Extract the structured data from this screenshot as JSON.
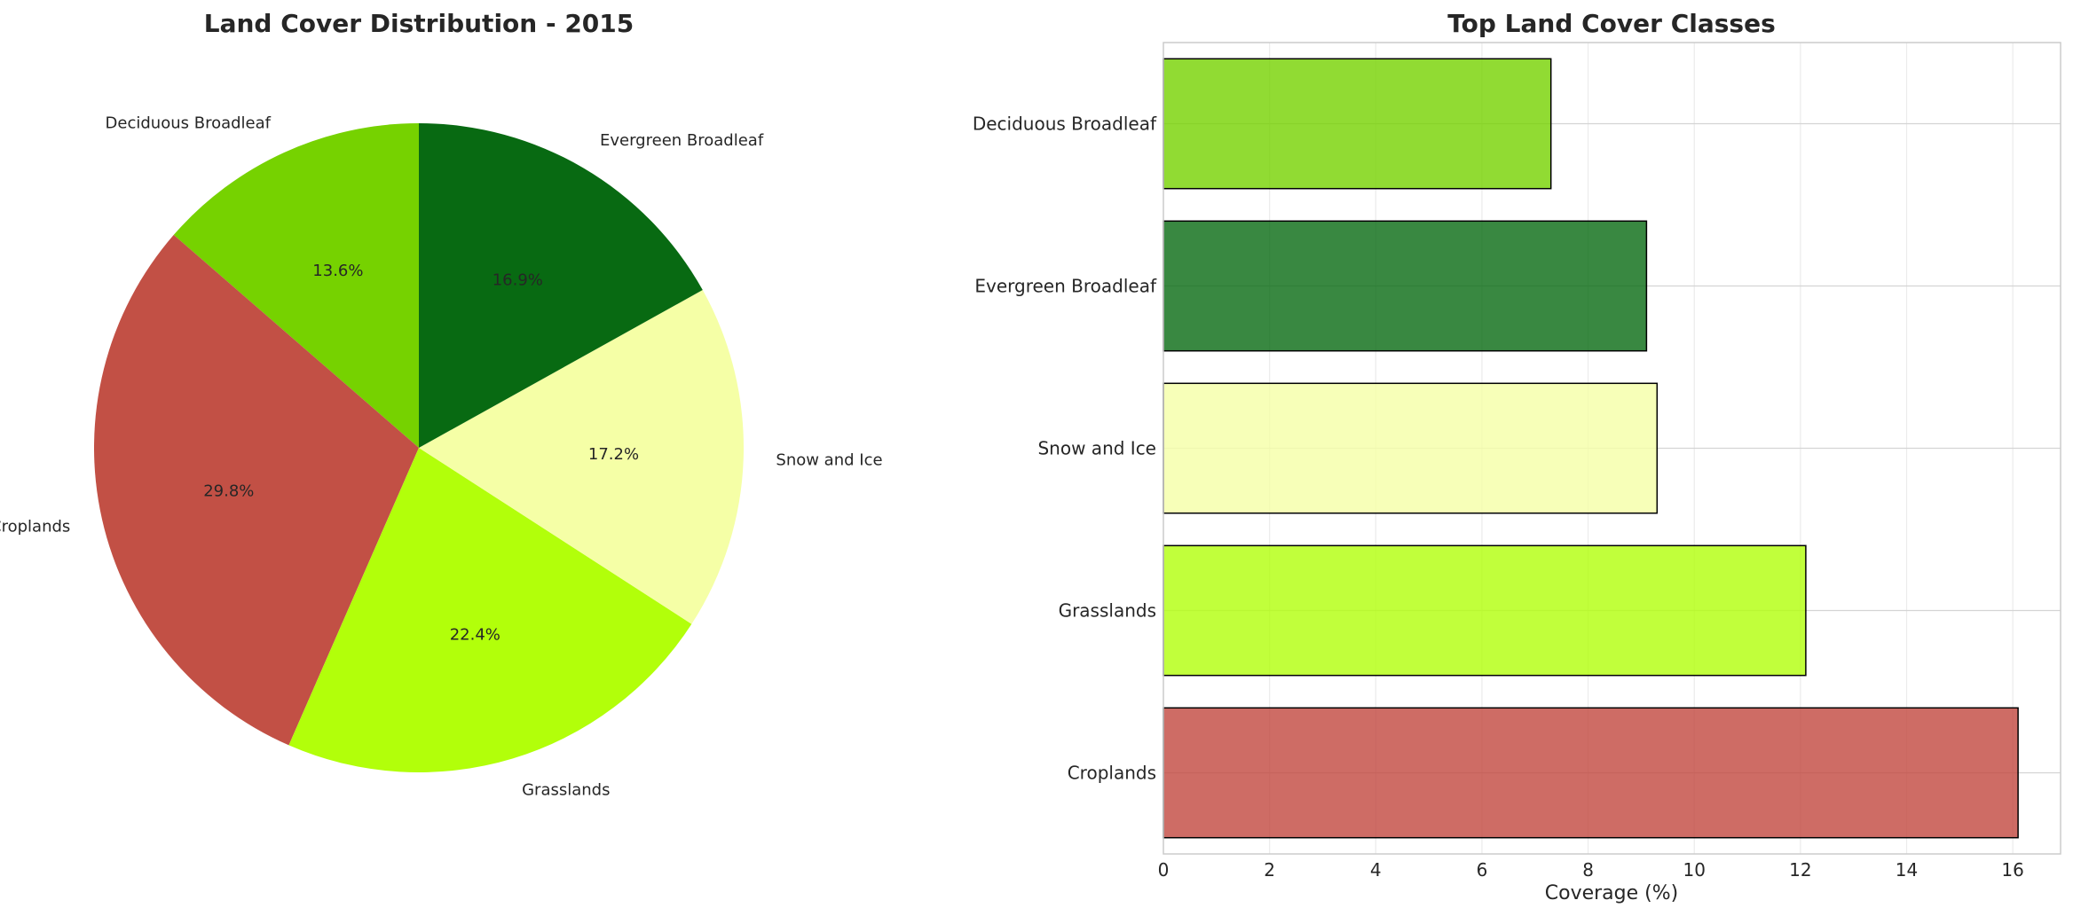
{
  "chart_data": [
    {
      "type": "pie",
      "title": "Land Cover Distribution - 2015",
      "start_angle_deg": 90,
      "direction": "counterclockwise",
      "slices": [
        {
          "label": "Deciduous Broadleaf",
          "value": 13.6,
          "pct_label": "13.6%",
          "color": "#76D200"
        },
        {
          "label": "Croplands",
          "value": 29.8,
          "pct_label": "29.8%",
          "color": "#C25045"
        },
        {
          "label": "Grasslands",
          "value": 22.4,
          "pct_label": "22.4%",
          "color": "#B2FF0A"
        },
        {
          "label": "Snow and Ice",
          "value": 17.2,
          "pct_label": "17.2%",
          "color": "#F5FFA6"
        },
        {
          "label": "Evergreen Broadleaf",
          "value": 16.9,
          "pct_label": "16.9%",
          "color": "#086A12"
        }
      ]
    },
    {
      "type": "bar",
      "orientation": "horizontal",
      "title": "Top Land Cover Classes",
      "xlabel": "Coverage (%)",
      "ylabel": "",
      "xlim": [
        0,
        16.9
      ],
      "xticks": [
        0,
        2,
        4,
        6,
        8,
        10,
        12,
        14,
        16
      ],
      "grid": true,
      "categories": [
        "Croplands",
        "Grasslands",
        "Snow and Ice",
        "Evergreen Broadleaf",
        "Deciduous Broadleaf"
      ],
      "values": [
        16.1,
        12.1,
        9.3,
        9.1,
        7.3
      ],
      "colors": [
        "#C2473E",
        "#B2FF0A",
        "#F5FFA6",
        "#086A12",
        "#76D200"
      ],
      "bar_opacity": 0.8
    }
  ]
}
